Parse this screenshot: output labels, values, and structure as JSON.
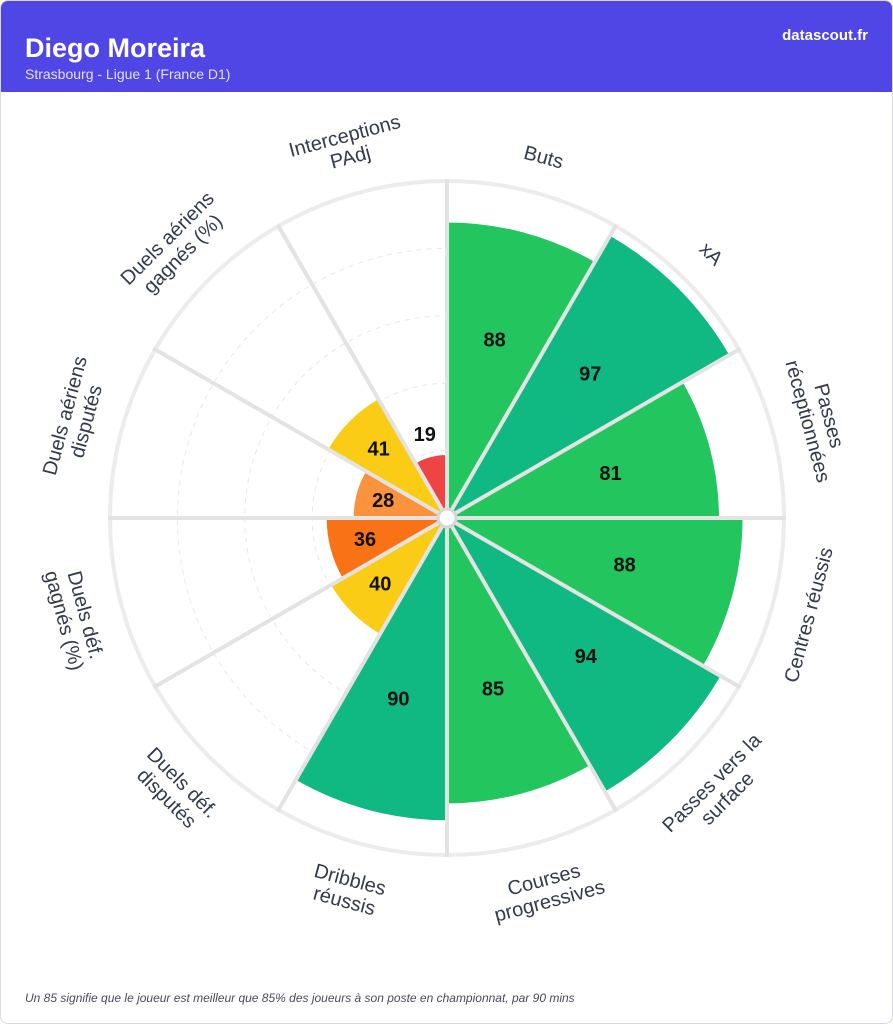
{
  "header": {
    "player_name": "Diego Moreira",
    "subtitle": "Strasbourg - Ligue 1 (France D1)",
    "brand": "datascout.fr"
  },
  "footnote": "Un 85 signifie que le joueur est meilleur que 85% des joueurs à son poste en championnat, par 90 mins",
  "chart_data": {
    "type": "polar-bar",
    "rlim": [
      0,
      100
    ],
    "grid": true,
    "categories": [
      {
        "lines": [
          "Buts"
        ],
        "value": 88,
        "color": "#22c55e"
      },
      {
        "lines": [
          "xA"
        ],
        "value": 97,
        "color": "#10b981"
      },
      {
        "lines": [
          "Passes",
          "réceptionnées"
        ],
        "value": 81,
        "color": "#22c55e"
      },
      {
        "lines": [
          "Centres réussis"
        ],
        "value": 88,
        "color": "#22c55e"
      },
      {
        "lines": [
          "Passes vers la",
          "surface"
        ],
        "value": 94,
        "color": "#10b981"
      },
      {
        "lines": [
          "Courses",
          "progressives"
        ],
        "value": 85,
        "color": "#22c55e"
      },
      {
        "lines": [
          "Dribbles",
          "réussis"
        ],
        "value": 90,
        "color": "#10b981"
      },
      {
        "lines": [
          "Duels déf.",
          "disputés"
        ],
        "value": 40,
        "color": "#facc15"
      },
      {
        "lines": [
          "Duels déf.",
          "gagnés (%)"
        ],
        "value": 36,
        "color": "#f97316"
      },
      {
        "lines": [
          "Duels aériens",
          "disputés"
        ],
        "value": 28,
        "color": "#fb923c"
      },
      {
        "lines": [
          "Duels aériens",
          "gagnés (%)"
        ],
        "value": 41,
        "color": "#facc15"
      },
      {
        "lines": [
          "Interceptions",
          "PAdj"
        ],
        "value": 19,
        "color": "#ef4444"
      }
    ]
  }
}
